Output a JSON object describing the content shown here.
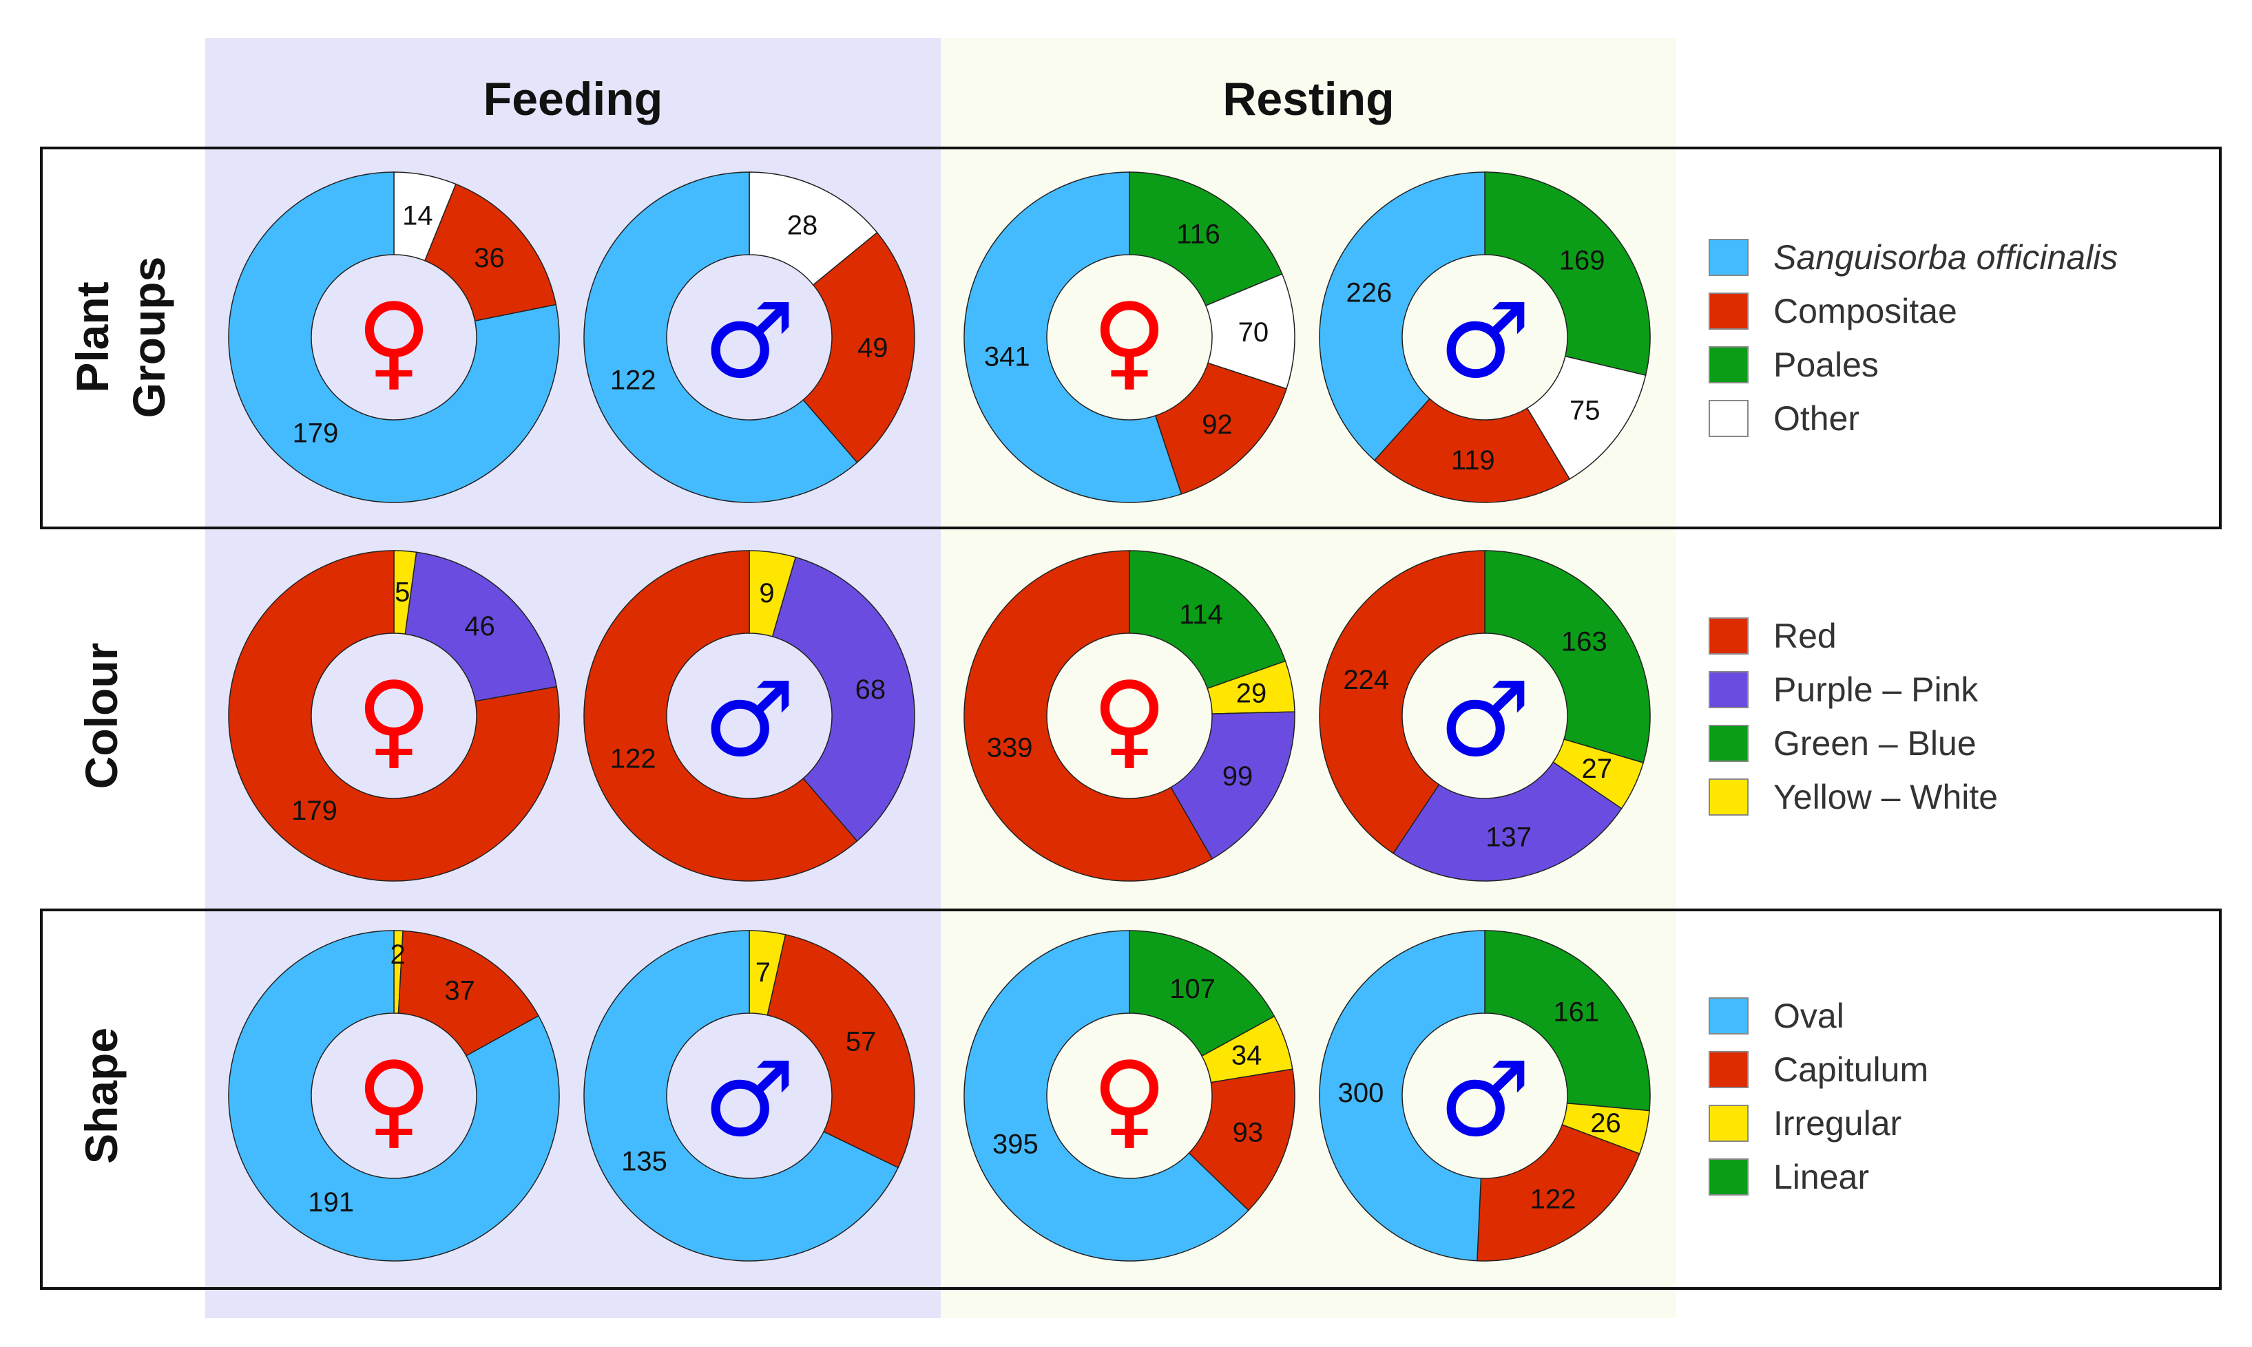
{
  "columns": [
    "Feeding",
    "Resting"
  ],
  "sex_symbols": {
    "female": "♀",
    "male": "♂"
  },
  "colors": {
    "feeding_bg": "#e4e4fb",
    "resting_bg": "#fafcf0",
    "female_symbol": "#ff0000",
    "male_symbol": "#0000ee",
    "frame": "#111111"
  },
  "chart_data": [
    {
      "type": "pie",
      "variant": "donut",
      "row_label": [
        "Plant",
        "Groups"
      ],
      "categories": [
        "Sanguisorba officinalis",
        "Compositae",
        "Poales",
        "Other"
      ],
      "category_colors": [
        "#45bbff",
        "#dd2c00",
        "#0b9d17",
        "#ffffff"
      ],
      "italic_categories": [
        "Sanguisorba officinalis"
      ],
      "series": [
        {
          "activity": "Feeding",
          "sex": "female",
          "values": [
            179,
            36,
            0,
            14
          ]
        },
        {
          "activity": "Feeding",
          "sex": "male",
          "values": [
            122,
            49,
            0,
            28
          ]
        },
        {
          "activity": "Resting",
          "sex": "female",
          "values": [
            341,
            92,
            116,
            70
          ]
        },
        {
          "activity": "Resting",
          "sex": "male",
          "values": [
            226,
            119,
            169,
            75
          ]
        }
      ]
    },
    {
      "type": "pie",
      "variant": "donut",
      "row_label": [
        "Colour"
      ],
      "categories": [
        "Red",
        "Purple – Pink",
        "Green – Blue",
        "Yellow – White"
      ],
      "category_colors": [
        "#dd2c00",
        "#6a4de0",
        "#0b9d17",
        "#ffe600"
      ],
      "italic_categories": [],
      "series": [
        {
          "activity": "Feeding",
          "sex": "female",
          "values": [
            179,
            46,
            0,
            5
          ]
        },
        {
          "activity": "Feeding",
          "sex": "male",
          "values": [
            122,
            68,
            0,
            9
          ]
        },
        {
          "activity": "Resting",
          "sex": "female",
          "values": [
            339,
            99,
            114,
            29
          ]
        },
        {
          "activity": "Resting",
          "sex": "male",
          "values": [
            224,
            137,
            163,
            27
          ]
        }
      ]
    },
    {
      "type": "pie",
      "variant": "donut",
      "row_label": [
        "Shape"
      ],
      "categories": [
        "Oval",
        "Capitulum",
        "Irregular",
        "Linear"
      ],
      "category_colors": [
        "#45bbff",
        "#dd2c00",
        "#ffe600",
        "#0b9d17"
      ],
      "italic_categories": [],
      "series": [
        {
          "activity": "Feeding",
          "sex": "female",
          "values": [
            191,
            37,
            2,
            0
          ]
        },
        {
          "activity": "Feeding",
          "sex": "male",
          "values": [
            135,
            57,
            7,
            0
          ]
        },
        {
          "activity": "Resting",
          "sex": "female",
          "values": [
            395,
            93,
            34,
            107
          ]
        },
        {
          "activity": "Resting",
          "sex": "male",
          "values": [
            300,
            122,
            26,
            161
          ]
        }
      ]
    }
  ]
}
